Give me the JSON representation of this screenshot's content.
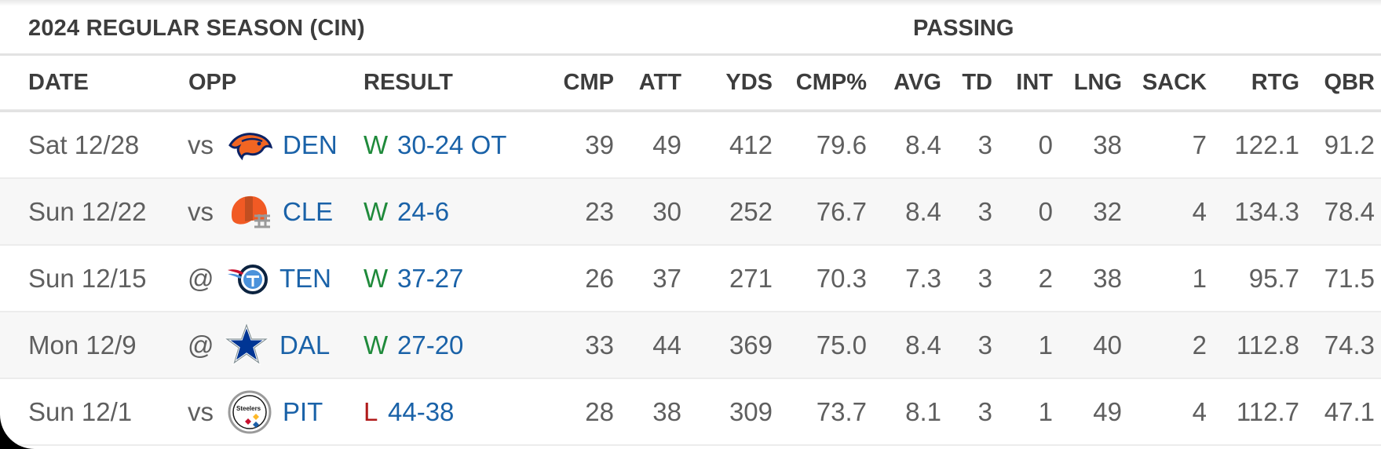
{
  "section": {
    "title": "2024 REGULAR SEASON (CIN)",
    "group": "PASSING"
  },
  "columns": {
    "date": "DATE",
    "opp": "OPP",
    "result": "RESULT",
    "cmp": "CMP",
    "att": "ATT",
    "yds": "YDS",
    "cmp_pct": "CMP%",
    "avg": "AVG",
    "td": "TD",
    "int": "INT",
    "lng": "LNG",
    "sack": "SACK",
    "rtg": "RTG",
    "qbr": "QBR"
  },
  "rows": [
    {
      "date": "Sat 12/28",
      "loc": "vs",
      "team": "DEN",
      "logo": "broncos-logo",
      "outcome": "W",
      "outcome_color": "#1f8a3b",
      "score": "30-24 OT",
      "cmp": "39",
      "att": "49",
      "yds": "412",
      "cmp_pct": "79.6",
      "avg": "8.4",
      "td": "3",
      "int": "0",
      "lng": "38",
      "sack": "7",
      "rtg": "122.1",
      "qbr": "91.2"
    },
    {
      "date": "Sun 12/22",
      "loc": "vs",
      "team": "CLE",
      "logo": "browns-helmet-logo",
      "outcome": "W",
      "outcome_color": "#1f8a3b",
      "score": "24-6",
      "cmp": "23",
      "att": "30",
      "yds": "252",
      "cmp_pct": "76.7",
      "avg": "8.4",
      "td": "3",
      "int": "0",
      "lng": "32",
      "sack": "4",
      "rtg": "134.3",
      "qbr": "78.4"
    },
    {
      "date": "Sun 12/15",
      "loc": "@",
      "team": "TEN",
      "logo": "titans-logo",
      "outcome": "W",
      "outcome_color": "#1f8a3b",
      "score": "37-27",
      "cmp": "26",
      "att": "37",
      "yds": "271",
      "cmp_pct": "70.3",
      "avg": "7.3",
      "td": "3",
      "int": "2",
      "lng": "38",
      "sack": "1",
      "rtg": "95.7",
      "qbr": "71.5"
    },
    {
      "date": "Mon 12/9",
      "loc": "@",
      "team": "DAL",
      "logo": "cowboys-star-logo",
      "outcome": "W",
      "outcome_color": "#1f8a3b",
      "score": "27-20",
      "cmp": "33",
      "att": "44",
      "yds": "369",
      "cmp_pct": "75.0",
      "avg": "8.4",
      "td": "3",
      "int": "1",
      "lng": "40",
      "sack": "2",
      "rtg": "112.8",
      "qbr": "74.3"
    },
    {
      "date": "Sun 12/1",
      "loc": "vs",
      "team": "PIT",
      "logo": "steelers-logo",
      "outcome": "L",
      "outcome_color": "#b01a1a",
      "score": "44-38",
      "cmp": "28",
      "att": "38",
      "yds": "309",
      "cmp_pct": "73.7",
      "avg": "8.1",
      "td": "3",
      "int": "1",
      "lng": "49",
      "sack": "4",
      "rtg": "112.7",
      "qbr": "47.1"
    }
  ],
  "colors": {
    "link": "#1a62a8",
    "win": "#1f8a3b",
    "loss": "#b01a1a",
    "text": "#5f5f5f",
    "header": "#3d3d3d"
  }
}
